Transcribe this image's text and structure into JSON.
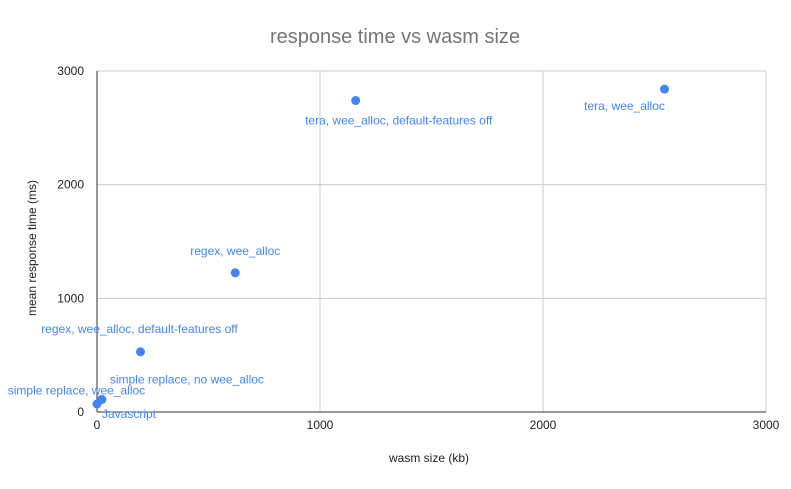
{
  "chart_data": {
    "type": "scatter",
    "title": "response time vs wasm size",
    "xlabel": "wasm size (kb)",
    "ylabel": "mean response time (ms)",
    "xlim": [
      0,
      3000
    ],
    "ylim": [
      0,
      3000
    ],
    "xticks": [
      "0",
      "1000",
      "2000",
      "3000"
    ],
    "yticks": [
      "0",
      "1000",
      "2000",
      "3000"
    ],
    "grid": true,
    "legend": "none",
    "series": [
      {
        "color": "#4285f4",
        "points": [
          {
            "x": 0,
            "y": 70,
            "label": "Javascript"
          },
          {
            "x": 20,
            "y": 110,
            "label": "simple replace, wee_alloc"
          },
          {
            "x": 195,
            "y": 530,
            "label": "regex, wee_alloc, default-features off"
          },
          {
            "x": 620,
            "y": 1225,
            "label": "regex, wee_alloc"
          },
          {
            "x": 1160,
            "y": 2740,
            "label": "tera, wee_alloc, default-features off"
          },
          {
            "x": 2545,
            "y": 2840,
            "label": "tera, wee_alloc"
          },
          {
            "x": 22,
            "y": 110,
            "label": "simple replace, no wee_alloc"
          }
        ]
      }
    ]
  }
}
